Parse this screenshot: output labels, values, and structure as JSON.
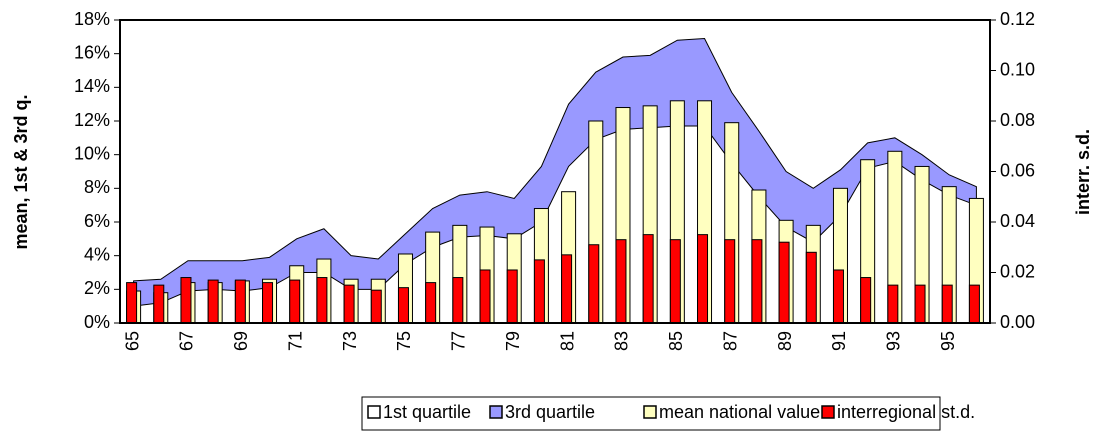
{
  "chart_data": {
    "type": "combo",
    "categories": [
      "65",
      null,
      "67",
      null,
      "69",
      null,
      "71",
      null,
      "73",
      null,
      "75",
      null,
      "77",
      null,
      "79",
      null,
      "81",
      null,
      "83",
      null,
      "85",
      null,
      "87",
      null,
      "89",
      null,
      "91",
      null,
      "93",
      null,
      "95",
      null
    ],
    "ylabel": "mean, 1st & 3rd q.",
    "y2label": "interr. s.d.",
    "ylim": [
      0,
      18
    ],
    "yticks": [
      {
        "value": 0,
        "label": "0%"
      },
      {
        "value": 2,
        "label": "2%"
      },
      {
        "value": 4,
        "label": "4%"
      },
      {
        "value": 6,
        "label": "6%"
      },
      {
        "value": 8,
        "label": "8%"
      },
      {
        "value": 10,
        "label": "10%"
      },
      {
        "value": 12,
        "label": "12%"
      },
      {
        "value": 14,
        "label": "14%"
      },
      {
        "value": 16,
        "label": "16%"
      },
      {
        "value": 18,
        "label": "18%"
      }
    ],
    "y2lim": [
      0,
      0.12
    ],
    "y2ticks": [
      {
        "value": 0,
        "label": "0.00"
      },
      {
        "value": 0.02,
        "label": "0.02"
      },
      {
        "value": 0.04,
        "label": "0.04"
      },
      {
        "value": 0.06,
        "label": "0.06"
      },
      {
        "value": 0.08,
        "label": "0.08"
      },
      {
        "value": 0.1,
        "label": "0.10"
      },
      {
        "value": 0.12,
        "label": "0.12"
      }
    ],
    "series": [
      {
        "name": "1st quartile",
        "type": "area",
        "color": "#ffffff",
        "values": [
          1.0,
          1.2,
          1.9,
          2.0,
          1.9,
          2.1,
          3.0,
          3.0,
          2.0,
          2.0,
          3.5,
          4.5,
          5.1,
          5.2,
          5.0,
          6.0,
          9.3,
          10.9,
          11.5,
          11.6,
          11.7,
          11.7,
          9.5,
          7.5,
          5.7,
          4.8,
          6.4,
          9.2,
          9.6,
          8.5,
          7.6,
          7.0
        ]
      },
      {
        "name": "3rd quartile",
        "type": "area",
        "color": "#9999ff",
        "values": [
          2.5,
          2.6,
          3.7,
          3.7,
          3.7,
          3.9,
          5.0,
          5.6,
          4.0,
          3.8,
          5.3,
          6.8,
          7.6,
          7.8,
          7.4,
          9.3,
          13.0,
          14.9,
          15.8,
          15.9,
          16.8,
          16.9,
          13.7,
          11.4,
          9.0,
          8.0,
          9.1,
          10.7,
          11.0,
          10.0,
          8.8,
          8.1
        ]
      },
      {
        "name": "mean national value",
        "type": "bar",
        "color": "#ffffc0",
        "values": [
          1.9,
          1.8,
          2.4,
          2.4,
          2.5,
          2.6,
          3.4,
          3.8,
          2.6,
          2.6,
          4.1,
          5.4,
          5.8,
          5.7,
          5.3,
          6.8,
          7.8,
          12.0,
          12.8,
          12.9,
          13.2,
          13.2,
          11.9,
          7.9,
          6.1,
          5.8,
          8.0,
          9.7,
          10.2,
          9.3,
          8.1,
          7.4
        ]
      },
      {
        "name": "interregional st.d.",
        "type": "bar",
        "axis": "y2",
        "color": "#ff0000",
        "values": [
          0.016,
          0.015,
          0.018,
          0.017,
          0.017,
          0.016,
          0.017,
          0.018,
          0.015,
          0.013,
          0.014,
          0.016,
          0.018,
          0.021,
          0.021,
          0.025,
          0.027,
          0.031,
          0.033,
          0.035,
          0.033,
          0.035,
          0.033,
          0.033,
          0.032,
          0.028,
          0.021,
          0.018,
          0.015,
          0.015,
          0.015,
          0.015
        ]
      }
    ]
  }
}
